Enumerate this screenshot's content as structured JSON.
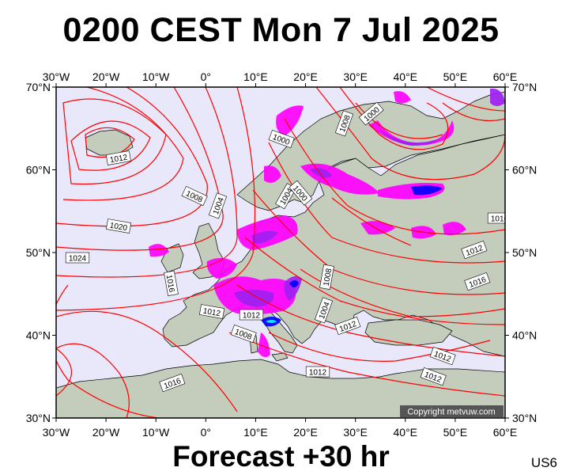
{
  "title": "0200 CEST Mon 7 Jul 2025",
  "subtitle": "Forecast +30 hr",
  "model_code": "US6",
  "copyright": "Copyright metvuw.com",
  "map": {
    "lon_range": [
      -30,
      60
    ],
    "lat_range": [
      30,
      70
    ],
    "lon_labels": [
      "30°W",
      "20°W",
      "10°W",
      "0°",
      "10°E",
      "20°E",
      "30°E",
      "40°E",
      "50°E",
      "60°E"
    ],
    "lat_labels": [
      "70°N",
      "60°N",
      "50°N",
      "40°N",
      "30°N"
    ],
    "colors": {
      "ocean": "#e8e8fa",
      "land": "#c4ccbc",
      "isobar": "#ff0000",
      "precip_light": "#ff00ff",
      "precip_mid": "#a020f0",
      "precip_heavy": "#0000ff",
      "precip_extreme": "#00ffff"
    },
    "isobar_labels": [
      "1012",
      "1008",
      "1004",
      "1020",
      "1024",
      "1016",
      "1000",
      "1004",
      "1000",
      "1008",
      "1012",
      "1012",
      "1008",
      "1004",
      "1012",
      "1012",
      "1016",
      "1016",
      "1012",
      "1008",
      "1012",
      "1012",
      "1016",
      "1000"
    ]
  }
}
